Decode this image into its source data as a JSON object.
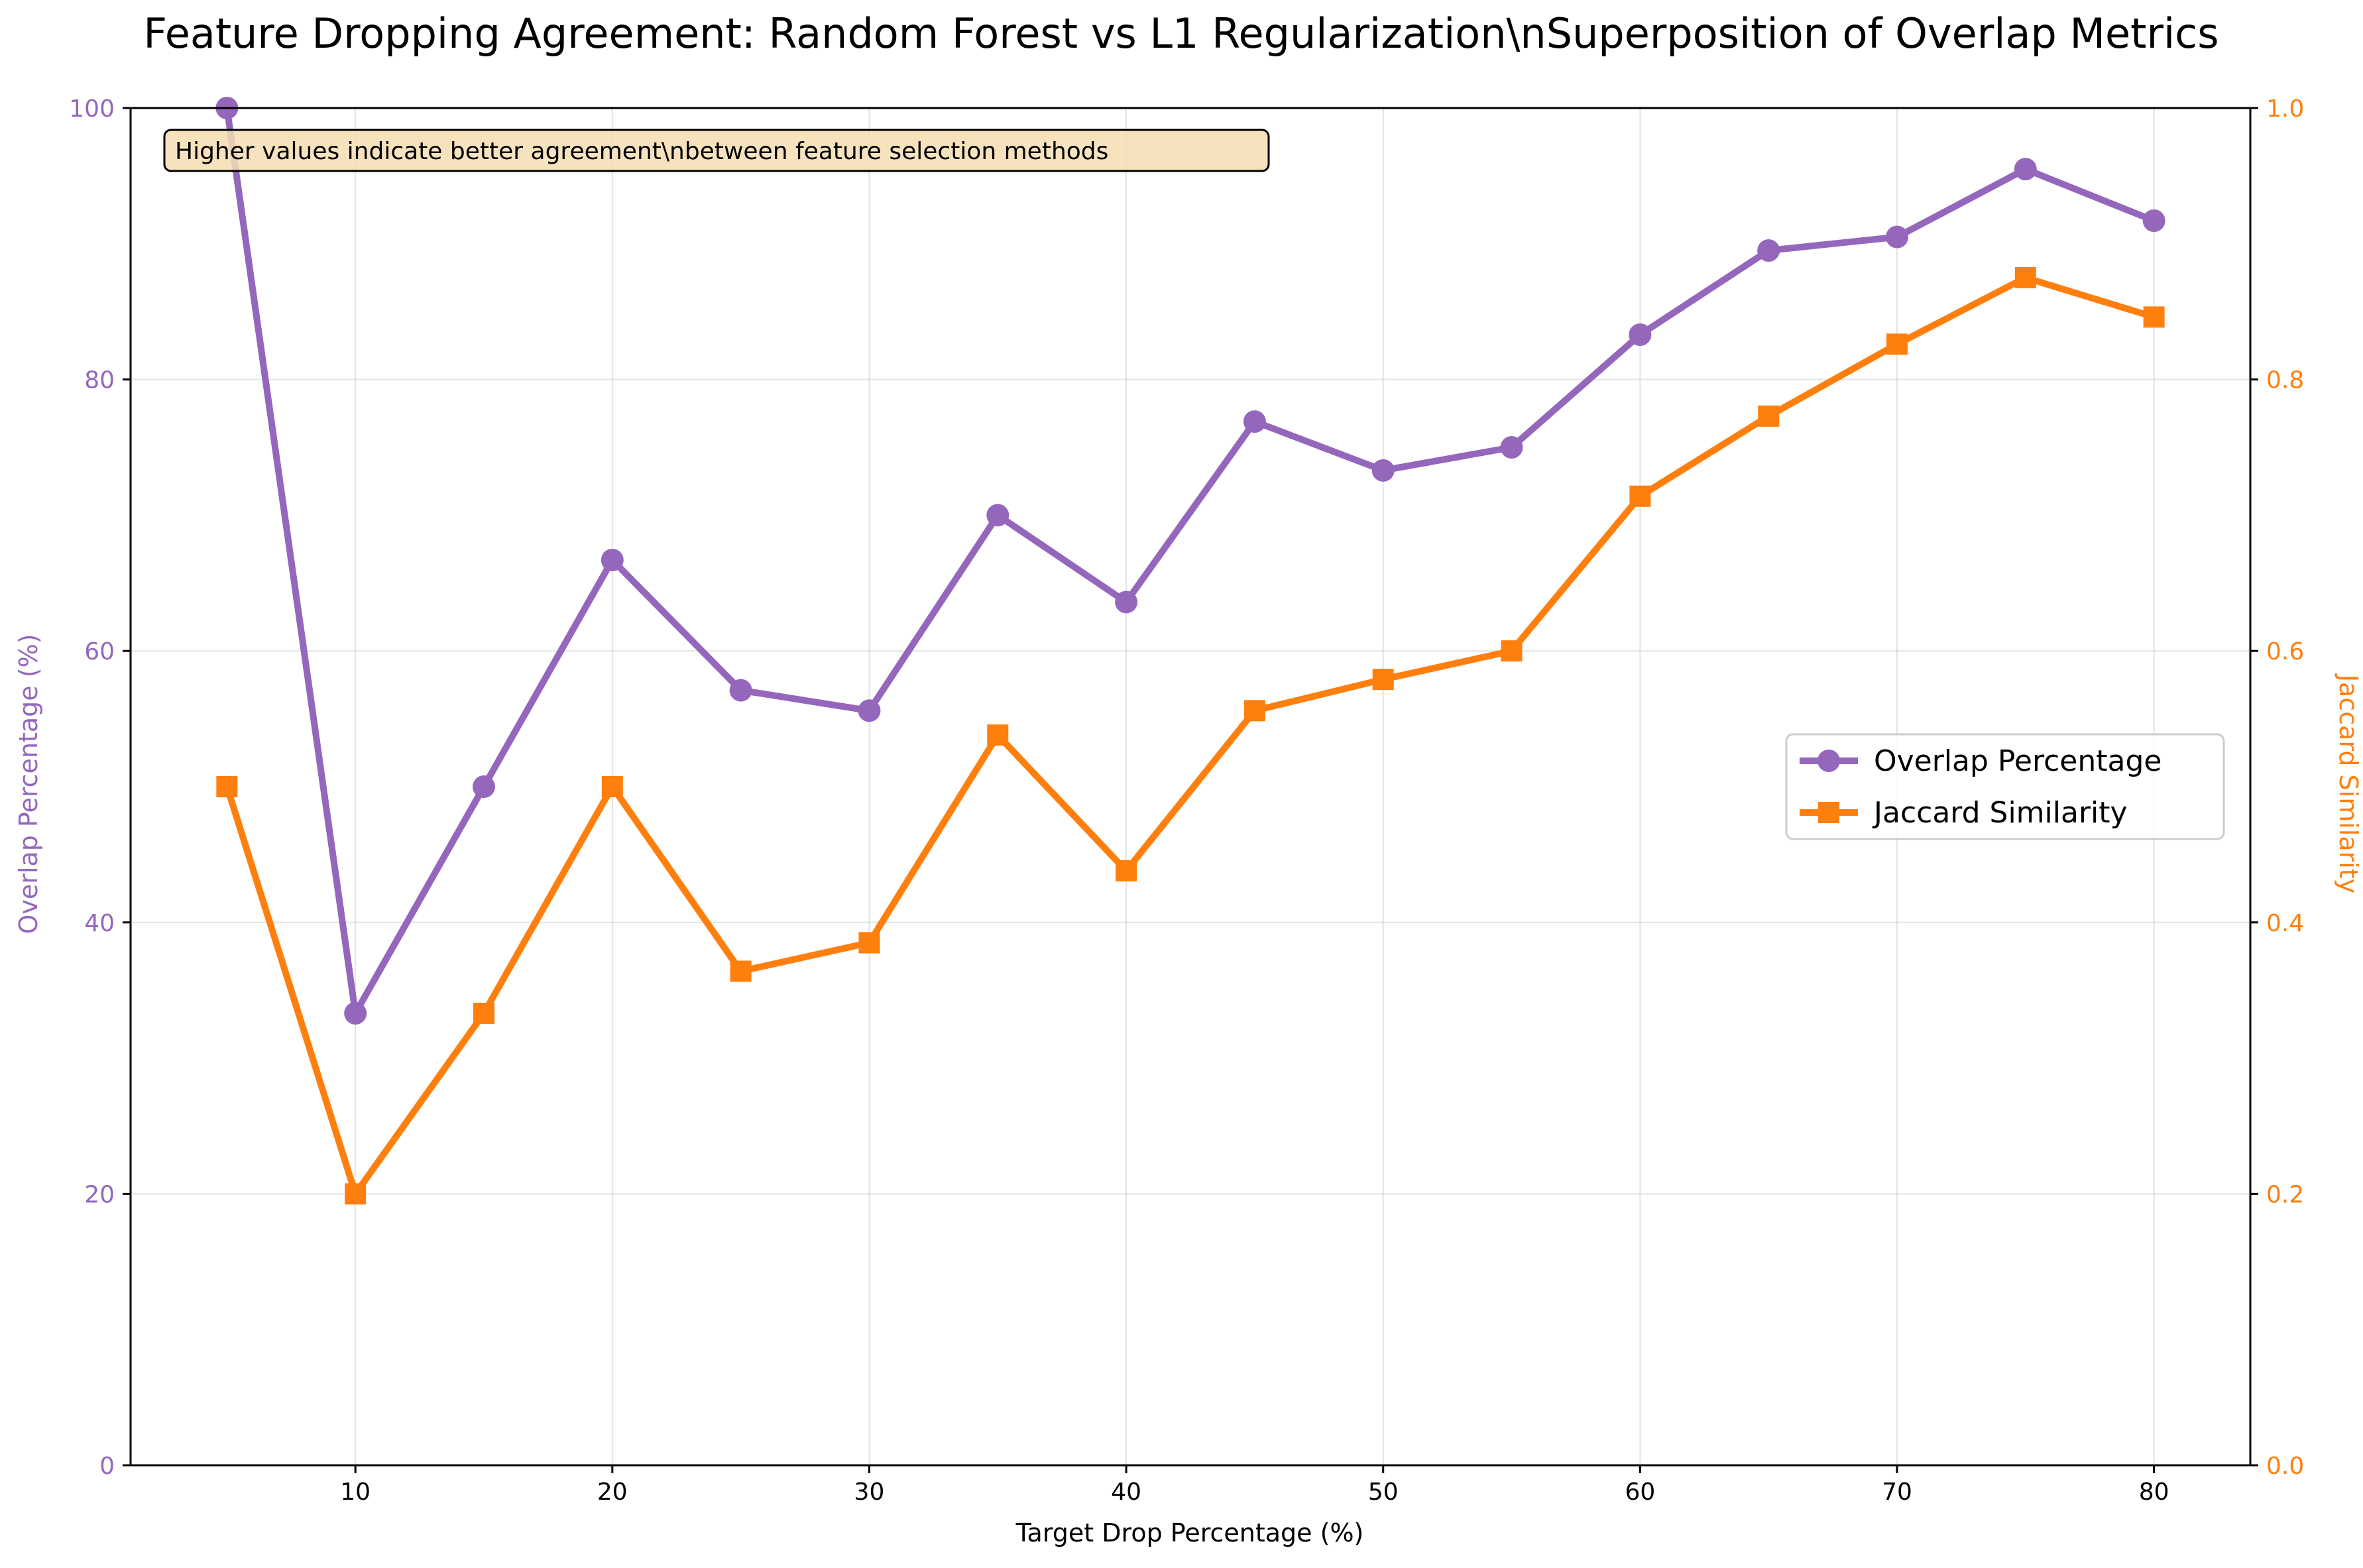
{
  "chart_data": {
    "type": "line",
    "title": "Feature Dropping Agreement: Random Forest vs L1 Regularization\\nSuperposition of Overlap Metrics",
    "xlabel": "Target Drop Percentage (%)",
    "ylabel_left": "Overlap Percentage (%)",
    "ylabel_right": "Jaccard Similarity",
    "x": [
      5,
      10,
      15,
      20,
      25,
      30,
      35,
      40,
      45,
      50,
      55,
      60,
      65,
      70,
      75,
      80
    ],
    "xlim": [
      1.25,
      83.75
    ],
    "x_ticks": [
      10,
      20,
      30,
      40,
      50,
      60,
      70,
      80
    ],
    "ylim_left": [
      0,
      100
    ],
    "y_ticks_left": [
      0,
      20,
      40,
      60,
      80,
      100
    ],
    "ylim_right": [
      0.0,
      1.0
    ],
    "y_ticks_right": [
      0.0,
      0.2,
      0.4,
      0.6,
      0.8,
      1.0
    ],
    "grid": true,
    "legend_position": "center-right",
    "annotation": "Higher values indicate better agreement\\nbetween feature selection methods",
    "series": [
      {
        "name": "Overlap Percentage",
        "axis": "left",
        "marker": "circle",
        "color": "#9467bd",
        "values": [
          100,
          33.3,
          50,
          66.7,
          57.1,
          55.6,
          70,
          63.6,
          76.9,
          73.3,
          75,
          83.3,
          89.5,
          90.5,
          95.5,
          91.7
        ]
      },
      {
        "name": "Jaccard Similarity",
        "axis": "right",
        "marker": "square",
        "color": "#ff7f0e",
        "values": [
          0.5,
          0.2,
          0.333,
          0.5,
          0.364,
          0.385,
          0.538,
          0.438,
          0.556,
          0.579,
          0.6,
          0.714,
          0.773,
          0.826,
          0.875,
          0.846
        ]
      }
    ]
  }
}
